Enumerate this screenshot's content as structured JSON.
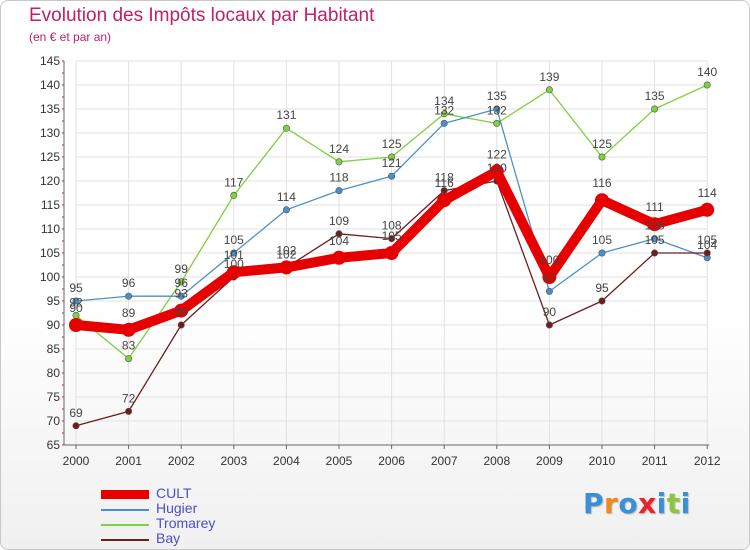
{
  "chart_data": {
    "type": "line",
    "title": "Evolution des Impôts locaux par Habitant",
    "subtitle": "(en € et par an)",
    "xlabel": "",
    "ylabel": "",
    "ylim": [
      65,
      145
    ],
    "yticks": [
      65,
      70,
      75,
      80,
      85,
      90,
      95,
      100,
      105,
      110,
      115,
      120,
      125,
      130,
      135,
      140,
      145
    ],
    "categories": [
      "2000",
      "2001",
      "2002",
      "2003",
      "2004",
      "2005",
      "2006",
      "2007",
      "2008",
      "2009",
      "2010",
      "2011",
      "2012"
    ],
    "grid": true,
    "series": [
      {
        "name": "CULT",
        "color": "#e60000",
        "values": [
          90,
          89,
          93,
          101,
          102,
          104,
          105,
          116,
          122,
          100,
          116,
          111,
          114
        ]
      },
      {
        "name": "Hugier",
        "color": "#4a90c8",
        "values": [
          95,
          96,
          96,
          105,
          114,
          118,
          121,
          132,
          135,
          97,
          105,
          108,
          104
        ]
      },
      {
        "name": "Tromarey",
        "color": "#80d040",
        "values": [
          92,
          83,
          99,
          117,
          131,
          124,
          125,
          134,
          132,
          139,
          125,
          135,
          140
        ]
      },
      {
        "name": "Bay",
        "color": "#6e1e1e",
        "values": [
          69,
          72,
          90,
          100,
          102,
          109,
          108,
          118,
          120,
          90,
          95,
          105,
          105
        ]
      }
    ],
    "legend_position": "bottom-left"
  },
  "branding": {
    "letters": [
      "P",
      "r",
      "o",
      "x",
      "i",
      "t",
      "i"
    ],
    "colors": [
      "#3b8fd6",
      "#f08a1d",
      "#3b8fd6",
      "#e8232a",
      "#3b8fd6",
      "#8cc63f",
      "#3b8fd6"
    ]
  }
}
